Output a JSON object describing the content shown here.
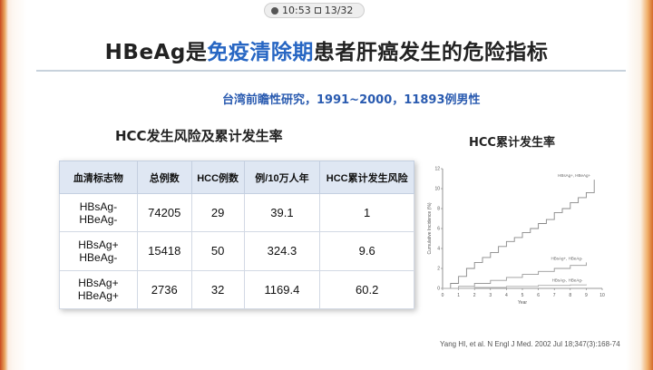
{
  "status": {
    "time": "10:53",
    "page": "13/32"
  },
  "title": {
    "part1": "HBeAg是",
    "highlight": "免疫清除期",
    "part2": "患者肝癌发生的危险指标"
  },
  "subtitle": "台湾前瞻性研究，1991~2000，11893例男性",
  "table_title": "HCC发生风险及累计发生率",
  "chart_title": "HCC累计发生率",
  "table": {
    "headers": [
      "血清标志物",
      "总例数",
      "HCC例数",
      "例/10万人年",
      "HCC累计发生风险"
    ],
    "rows": [
      {
        "marker_1": "HBsAg-",
        "marker_2": "HBeAg-",
        "total": "74205",
        "hcc": "29",
        "rate": "39.1",
        "risk": "1"
      },
      {
        "marker_1": "HBsAg+",
        "marker_2": "HBeAg-",
        "total": "15418",
        "hcc": "50",
        "rate": "324.3",
        "risk": "9.6"
      },
      {
        "marker_1": "HBsAg+",
        "marker_2": "HBeAg+",
        "total": "2736",
        "hcc": "32",
        "rate": "1169.4",
        "risk": "60.2"
      }
    ]
  },
  "chart_data": {
    "type": "line",
    "xlabel": "Year",
    "ylabel": "Cumulative Incidence (%)",
    "xlim": [
      0,
      10
    ],
    "ylim": [
      0,
      12
    ],
    "xticks": [
      "0",
      "1",
      "2",
      "3",
      "4",
      "5",
      "6",
      "7",
      "8",
      "9",
      "10"
    ],
    "yticks": [
      "0",
      "2",
      "4",
      "6",
      "8",
      "10",
      "12"
    ],
    "series": [
      {
        "name": "HBsAg+, HBeAg+",
        "x": [
          0,
          0.5,
          1,
          1.5,
          2,
          2.5,
          3,
          3.5,
          4,
          4.5,
          5,
          5.5,
          6,
          6.5,
          7,
          7.5,
          8,
          8.5,
          9,
          9.5
        ],
        "y": [
          0,
          0.5,
          1.2,
          2.0,
          2.6,
          3.1,
          3.6,
          4.2,
          4.7,
          5.1,
          5.6,
          6.0,
          6.5,
          6.9,
          7.6,
          8.0,
          8.6,
          9.1,
          9.6,
          10.9
        ]
      },
      {
        "name": "HBsAg+, HBeAg-",
        "x": [
          0,
          1,
          2,
          3,
          4,
          5,
          6,
          7,
          8,
          9
        ],
        "y": [
          0,
          0.2,
          0.5,
          0.8,
          1.1,
          1.4,
          1.7,
          2.0,
          2.3,
          2.6
        ]
      },
      {
        "name": "HBsAg-, HBeAg-",
        "x": [
          0,
          2,
          4,
          6,
          8,
          9
        ],
        "y": [
          0,
          0.1,
          0.2,
          0.3,
          0.35,
          0.4
        ]
      }
    ]
  },
  "reference": "Yang HI, et al. N Engl J Med. 2002 Jul 18;347(3):168-74"
}
